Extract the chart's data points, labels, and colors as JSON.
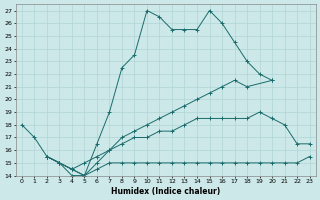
{
  "xlabel": "Humidex (Indice chaleur)",
  "xlim": [
    -0.5,
    23.5
  ],
  "ylim": [
    14,
    27.5
  ],
  "ytick_vals": [
    14,
    15,
    16,
    17,
    18,
    19,
    20,
    21,
    22,
    23,
    24,
    25,
    26,
    27
  ],
  "xtick_vals": [
    0,
    1,
    2,
    3,
    4,
    5,
    6,
    7,
    8,
    9,
    10,
    11,
    12,
    13,
    14,
    15,
    16,
    17,
    18,
    19,
    20,
    21,
    22,
    23
  ],
  "background_color": "#cde8e8",
  "line_color": "#1a6b6b",
  "grid_color": "#b0d4d4",
  "lines": [
    {
      "x": [
        0,
        1,
        2,
        3,
        4,
        5,
        6,
        7,
        8,
        9,
        10,
        11,
        12,
        13,
        14,
        15,
        16,
        17,
        18,
        19,
        20
      ],
      "y": [
        18,
        17,
        15.5,
        15,
        14.5,
        14,
        16.5,
        19,
        22.5,
        23.5,
        27,
        26.5,
        25.5,
        25.5,
        25.5,
        27,
        26,
        24.5,
        23,
        22,
        21.5
      ]
    },
    {
      "x": [
        2,
        3,
        4,
        5,
        6,
        7,
        8,
        9,
        10,
        11,
        12,
        13,
        14,
        15,
        16,
        17,
        18,
        20
      ],
      "y": [
        15.5,
        15,
        14.5,
        14,
        15,
        16,
        17,
        17.5,
        18,
        18.5,
        19,
        19.5,
        20,
        20.5,
        21,
        21.5,
        21,
        21.5
      ]
    },
    {
      "x": [
        2,
        3,
        4,
        5,
        6,
        7,
        8,
        9,
        10,
        11,
        12,
        13,
        14,
        15,
        16,
        17,
        18,
        19,
        20,
        21,
        22,
        23
      ],
      "y": [
        15.5,
        15,
        14.5,
        15,
        15.5,
        16,
        16.5,
        17,
        17,
        17.5,
        17.5,
        18,
        18.5,
        18.5,
        18.5,
        18.5,
        18.5,
        19,
        18.5,
        18,
        16.5,
        16.5
      ]
    },
    {
      "x": [
        2,
        3,
        4,
        5,
        6,
        7,
        8,
        9,
        10,
        11,
        12,
        13,
        14,
        15,
        16,
        17,
        18,
        19,
        20,
        21,
        22,
        23
      ],
      "y": [
        15.5,
        15,
        14,
        14,
        14.5,
        15,
        15,
        15,
        15,
        15,
        15,
        15,
        15,
        15,
        15,
        15,
        15,
        15,
        15,
        15,
        15,
        15.5
      ]
    }
  ]
}
